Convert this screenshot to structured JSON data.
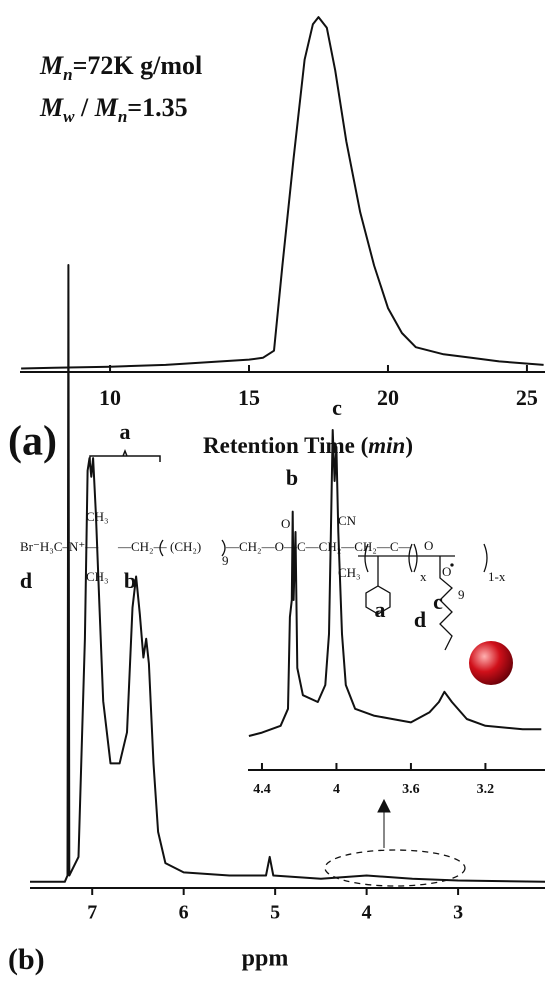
{
  "chart_data": [
    {
      "type": "line",
      "panel_label": "(a)",
      "annotations": [
        [
          "M",
          "n",
          "=72K g/mol"
        ],
        [
          "M",
          "w",
          " / ",
          "M",
          "n",
          "=1.35"
        ]
      ],
      "xlabel": [
        "Retention Time (",
        "min",
        ")"
      ],
      "xlim": [
        6.76,
        25.65
      ],
      "xticks": [
        10,
        15,
        20,
        25
      ],
      "ylim": [
        0,
        1.02
      ],
      "color": "#111111",
      "x": [
        6.8,
        8,
        10,
        12,
        14,
        15,
        15.5,
        15.9,
        16.2,
        16.6,
        17,
        17.3,
        17.5,
        17.8,
        18.1,
        18.5,
        19,
        19.5,
        20,
        20.5,
        21,
        22,
        23,
        24,
        25.6
      ],
      "values": [
        0.01,
        0.012,
        0.015,
        0.02,
        0.03,
        0.035,
        0.04,
        0.06,
        0.3,
        0.6,
        0.88,
        0.98,
        1.0,
        0.97,
        0.85,
        0.65,
        0.45,
        0.3,
        0.18,
        0.11,
        0.07,
        0.05,
        0.04,
        0.03,
        0.02
      ]
    },
    {
      "type": "line",
      "panel_label": "(b)",
      "xlabel": "ppm",
      "annotations": [
        "a",
        "b",
        "c",
        "d"
      ],
      "xlim": [
        7.68,
        2.05
      ],
      "xticks": [
        7,
        6,
        5,
        4,
        3
      ],
      "ylim": [
        0,
        1
      ],
      "color": "#111111",
      "x": [
        7.68,
        7.3,
        7.27,
        7.26,
        7.25,
        7.15,
        7.08,
        7.05,
        7.03,
        7.01,
        6.99,
        6.96,
        6.92,
        6.88,
        6.8,
        6.7,
        6.62,
        6.56,
        6.52,
        6.48,
        6.44,
        6.41,
        6.38,
        6.33,
        6.28,
        6.2,
        6.0,
        5.5,
        5.1,
        5.06,
        5.02,
        4.5,
        4.0,
        3.5,
        3.0,
        2.05
      ],
      "values": [
        0.01,
        0.01,
        0.02,
        1.0,
        0.02,
        0.05,
        0.4,
        0.67,
        0.69,
        0.66,
        0.69,
        0.6,
        0.45,
        0.3,
        0.2,
        0.2,
        0.25,
        0.45,
        0.5,
        0.44,
        0.37,
        0.4,
        0.36,
        0.2,
        0.09,
        0.04,
        0.025,
        0.02,
        0.02,
        0.05,
        0.02,
        0.015,
        0.02,
        0.015,
        0.012,
        0.01
      ],
      "inset": {
        "xlim": [
          4.475,
          2.88
        ],
        "xticks": [
          4.4,
          4.0,
          3.6,
          3.2
        ],
        "ylim": [
          0,
          1
        ],
        "x": [
          4.47,
          4.4,
          4.3,
          4.26,
          4.25,
          4.24,
          4.235,
          4.23,
          4.22,
          4.21,
          4.18,
          4.1,
          4.06,
          4.04,
          4.03,
          4.02,
          4.01,
          4.0,
          3.99,
          3.97,
          3.95,
          3.9,
          3.8,
          3.7,
          3.6,
          3.5,
          3.45,
          3.42,
          3.38,
          3.3,
          3.2,
          3.0,
          2.9
        ],
        "values": [
          0.1,
          0.11,
          0.13,
          0.18,
          0.45,
          0.5,
          0.76,
          0.5,
          0.7,
          0.3,
          0.22,
          0.2,
          0.25,
          0.4,
          0.7,
          1.0,
          0.85,
          0.95,
          0.7,
          0.4,
          0.25,
          0.18,
          0.16,
          0.15,
          0.14,
          0.17,
          0.2,
          0.23,
          0.2,
          0.15,
          0.13,
          0.12,
          0.12
        ]
      }
    }
  ],
  "structure": {
    "fragments": [
      "Br⁻H₃C–N⁺—",
      "CH₃",
      "CH₃",
      "—CH₂—",
      "(CH₂)",
      "9",
      "—CH₂—O—C—CH₂—CH₂—C—",
      "O",
      "CN",
      "CH₃",
      "x",
      "1-x",
      "O",
      "O",
      "9"
    ],
    "labels": [
      "d",
      "b",
      "a",
      "c"
    ]
  }
}
